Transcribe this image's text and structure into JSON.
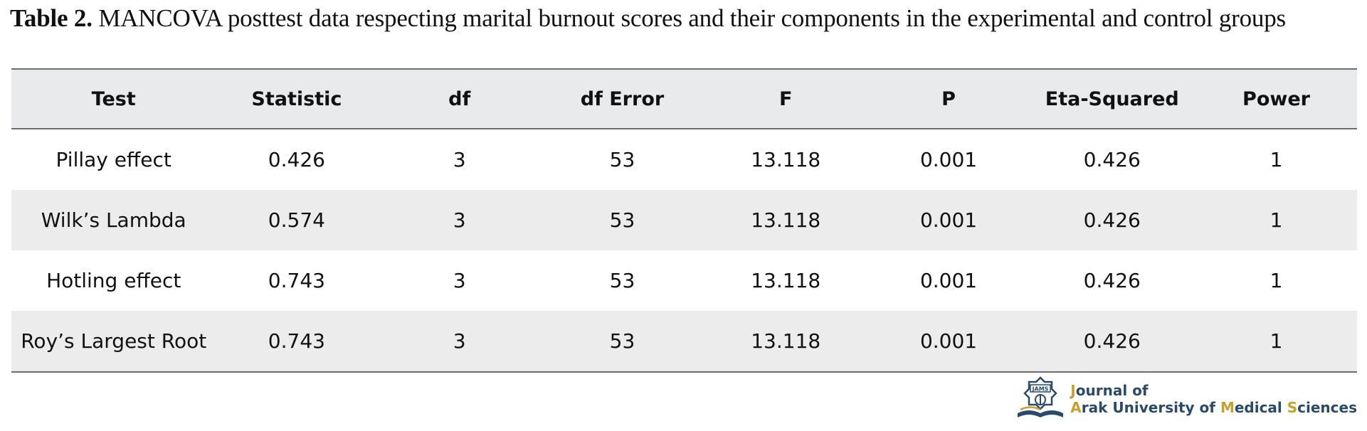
{
  "caption": {
    "label": "Table 2.",
    "text": " MANCOVA posttest data respecting marital burnout scores and their components in the experimental and control groups"
  },
  "table": {
    "headers": [
      "Test",
      "Statistic",
      "df",
      "df Error",
      "F",
      "P",
      "Eta-Squared",
      "Power"
    ],
    "rows": [
      [
        "Pillay effect",
        "0.426",
        "3",
        "53",
        "13.118",
        "0.001",
        "0.426",
        "1"
      ],
      [
        "Wilk’s Lambda",
        "0.574",
        "3",
        "53",
        "13.118",
        "0.001",
        "0.426",
        "1"
      ],
      [
        "Hotling effect",
        "0.743",
        "3",
        "53",
        "13.118",
        "0.001",
        "0.426",
        "1"
      ],
      [
        "Roy’s Largest Root",
        "0.743",
        "3",
        "53",
        "13.118",
        "0.001",
        "0.426",
        "1"
      ]
    ]
  },
  "logo": {
    "emblem_text": "JAMS",
    "line1_first": "J",
    "line1_rest": "ournal of",
    "line2_a": "A",
    "line2_b": "rak University of ",
    "line2_c": "M",
    "line2_d": "edical ",
    "line2_e": "S",
    "line2_f": "ciences",
    "colors": {
      "primary": "#2a4a6a",
      "accent": "#c7a12c"
    }
  }
}
